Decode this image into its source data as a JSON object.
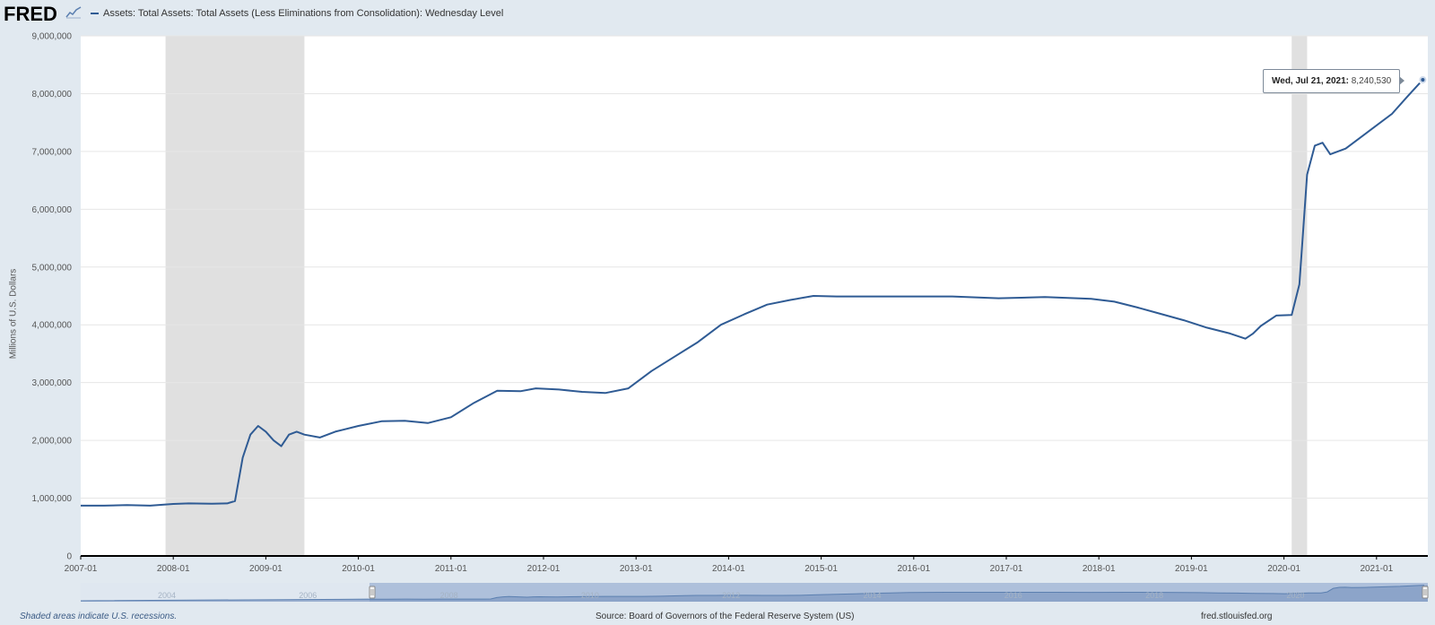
{
  "header": {
    "logo": "FRED",
    "logo_icon": "trend-line-icon",
    "legend_label": "Assets: Total Assets: Total Assets (Less Eliminations from Consolidation): Wednesday Level"
  },
  "tooltip": {
    "date": "Wed, Jul 21, 2021:",
    "value": "8,240,530"
  },
  "footer": {
    "note": "Shaded areas indicate U.S. recessions.",
    "source": "Source: Board of Governors of the Federal Reserve System (US)",
    "site": "fred.stlouisfed.org"
  },
  "colors": {
    "series": "#2f5b94",
    "recession": "#e0e0e0",
    "background": "#e1e9f0",
    "plot": "#ffffff",
    "navigator": "#9db3d4"
  },
  "chart_data": {
    "type": "line",
    "title": "",
    "xlabel": "",
    "ylabel": "Millions of U.S. Dollars",
    "xlim": [
      "2007-01",
      "2021-07"
    ],
    "ylim": [
      0,
      9000000
    ],
    "grid": true,
    "y_ticks": [
      {
        "value": 0,
        "label": "0"
      },
      {
        "value": 1000000,
        "label": "1,000,000"
      },
      {
        "value": 2000000,
        "label": "2,000,000"
      },
      {
        "value": 3000000,
        "label": "3,000,000"
      },
      {
        "value": 4000000,
        "label": "4,000,000"
      },
      {
        "value": 5000000,
        "label": "5,000,000"
      },
      {
        "value": 6000000,
        "label": "6,000,000"
      },
      {
        "value": 7000000,
        "label": "7,000,000"
      },
      {
        "value": 8000000,
        "label": "8,000,000"
      },
      {
        "value": 9000000,
        "label": "9,000,000"
      }
    ],
    "x_ticks": [
      "2007-01",
      "2008-01",
      "2009-01",
      "2010-01",
      "2011-01",
      "2012-01",
      "2013-01",
      "2014-01",
      "2015-01",
      "2016-01",
      "2017-01",
      "2018-01",
      "2019-01",
      "2020-01",
      "2021-01"
    ],
    "recessions": [
      [
        "2007-12",
        "2009-06"
      ],
      [
        "2020-02",
        "2020-04"
      ]
    ],
    "navigator_ticks": [
      "2004",
      "2006",
      "2008",
      "2010",
      "2012",
      "2014",
      "2016",
      "2018",
      "2020"
    ],
    "series": [
      {
        "values": [
          [
            "2007-01",
            870000
          ],
          [
            "2007-04",
            870000
          ],
          [
            "2007-07",
            880000
          ],
          [
            "2007-10",
            870000
          ],
          [
            "2008-01",
            900000
          ],
          [
            "2008-03",
            910000
          ],
          [
            "2008-06",
            905000
          ],
          [
            "2008-08",
            910000
          ],
          [
            "2008-09",
            950000
          ],
          [
            "2008-10",
            1700000
          ],
          [
            "2008-11",
            2100000
          ],
          [
            "2008-12",
            2250000
          ],
          [
            "2009-01",
            2150000
          ],
          [
            "2009-02",
            2000000
          ],
          [
            "2009-03",
            1900000
          ],
          [
            "2009-04",
            2100000
          ],
          [
            "2009-05",
            2150000
          ],
          [
            "2009-06",
            2100000
          ],
          [
            "2009-08",
            2050000
          ],
          [
            "2009-10",
            2150000
          ],
          [
            "2010-01",
            2250000
          ],
          [
            "2010-04",
            2330000
          ],
          [
            "2010-07",
            2340000
          ],
          [
            "2010-10",
            2300000
          ],
          [
            "2011-01",
            2400000
          ],
          [
            "2011-04",
            2650000
          ],
          [
            "2011-07",
            2860000
          ],
          [
            "2011-10",
            2850000
          ],
          [
            "2011-12",
            2900000
          ],
          [
            "2012-03",
            2880000
          ],
          [
            "2012-06",
            2840000
          ],
          [
            "2012-09",
            2820000
          ],
          [
            "2012-12",
            2900000
          ],
          [
            "2013-03",
            3200000
          ],
          [
            "2013-06",
            3450000
          ],
          [
            "2013-09",
            3700000
          ],
          [
            "2013-12",
            4000000
          ],
          [
            "2014-03",
            4180000
          ],
          [
            "2014-06",
            4350000
          ],
          [
            "2014-09",
            4430000
          ],
          [
            "2014-12",
            4500000
          ],
          [
            "2015-03",
            4490000
          ],
          [
            "2015-06",
            4490000
          ],
          [
            "2015-09",
            4490000
          ],
          [
            "2015-12",
            4490000
          ],
          [
            "2016-06",
            4490000
          ],
          [
            "2016-12",
            4460000
          ],
          [
            "2017-06",
            4480000
          ],
          [
            "2017-12",
            4450000
          ],
          [
            "2018-03",
            4400000
          ],
          [
            "2018-06",
            4300000
          ],
          [
            "2018-09",
            4190000
          ],
          [
            "2018-12",
            4080000
          ],
          [
            "2019-03",
            3950000
          ],
          [
            "2019-06",
            3850000
          ],
          [
            "2019-08",
            3760000
          ],
          [
            "2019-09",
            3850000
          ],
          [
            "2019-10",
            3980000
          ],
          [
            "2019-12",
            4160000
          ],
          [
            "2020-02",
            4170000
          ],
          [
            "2020-03",
            4700000
          ],
          [
            "2020-04",
            6600000
          ],
          [
            "2020-05",
            7100000
          ],
          [
            "2020-06",
            7150000
          ],
          [
            "2020-07",
            6950000
          ],
          [
            "2020-09",
            7050000
          ],
          [
            "2020-12",
            7350000
          ],
          [
            "2021-03",
            7650000
          ],
          [
            "2021-05",
            7950000
          ],
          [
            "2021-07",
            8240530
          ]
        ]
      }
    ]
  }
}
